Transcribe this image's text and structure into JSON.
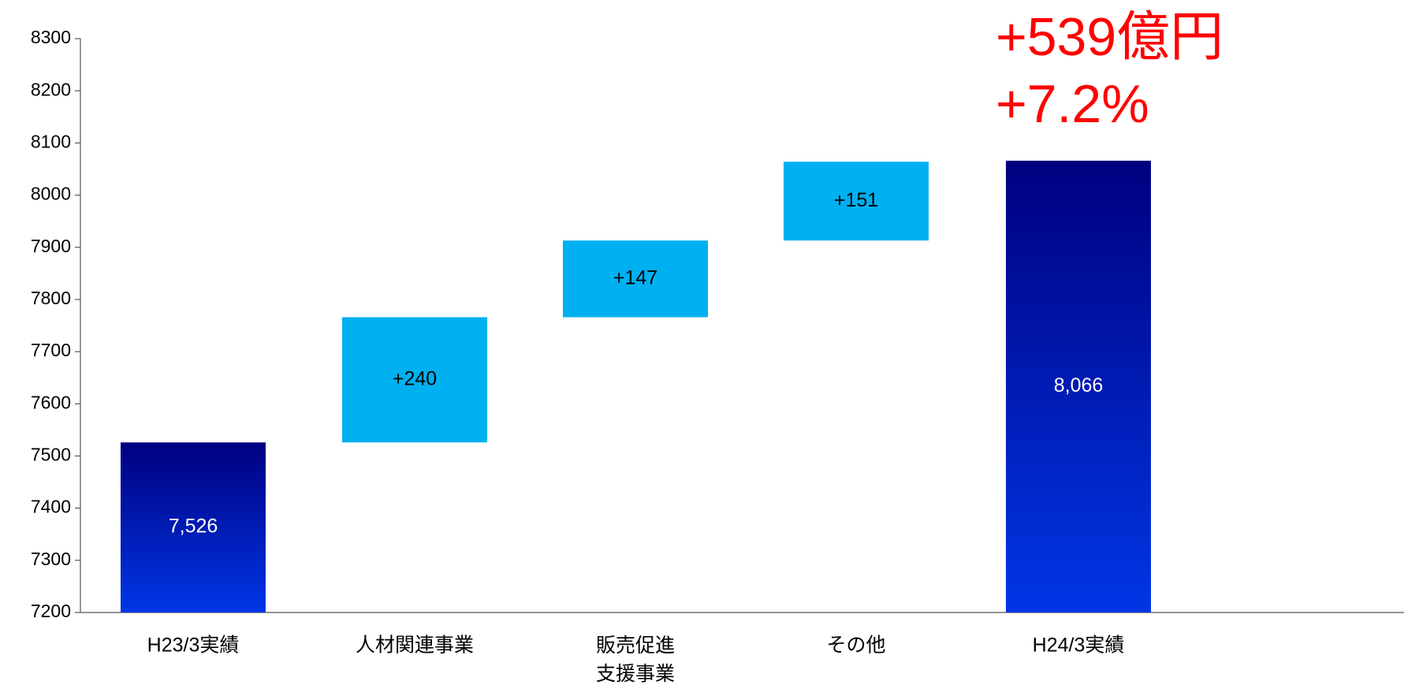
{
  "chart_data": {
    "type": "waterfall",
    "categories": [
      "H23/3実績",
      "人材関連事業",
      "販売促進\n支援事業",
      "その他",
      "H24/3実績"
    ],
    "measures": [
      "absolute",
      "relative",
      "relative",
      "relative",
      "total"
    ],
    "values": [
      7526,
      240,
      147,
      151,
      8066
    ],
    "value_labels": [
      "7,526",
      "+240",
      "+147",
      "+151",
      "8,066"
    ],
    "total_colors": [
      "#000080",
      "#0036e6"
    ],
    "delta_color": "#00b0f0",
    "annotations": [
      "+539億円",
      "+7.2%"
    ],
    "annotation_color": "#ff0000",
    "ylim": [
      7200,
      8300
    ],
    "yticks": [
      7200,
      7300,
      7400,
      7500,
      7600,
      7700,
      7800,
      7900,
      8000,
      8100,
      8200,
      8300
    ],
    "grid": false
  }
}
